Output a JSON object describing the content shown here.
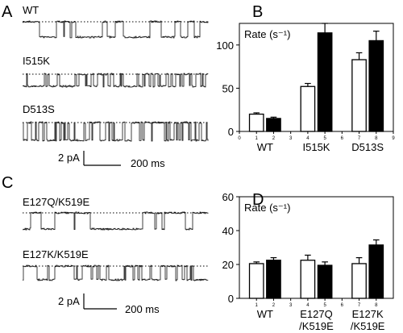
{
  "panels": {
    "A": {
      "letter": "A",
      "traces": [
        {
          "label": "WT"
        },
        {
          "label": "I515K"
        },
        {
          "label": "D513S"
        }
      ],
      "scalebar": {
        "y_label": "2 pA",
        "x_label": "200 ms"
      }
    },
    "C": {
      "letter": "C",
      "traces": [
        {
          "label": "E127Q/K519E"
        },
        {
          "label": "E127K/K519E"
        }
      ],
      "scalebar": {
        "y_label": "2 pA",
        "x_label": "200 ms"
      }
    }
  },
  "chart_data": [
    {
      "panel": "B",
      "type": "bar",
      "title": "Rate (s⁻¹)",
      "ylim": [
        0,
        125
      ],
      "yticks": [
        0,
        50,
        100
      ],
      "x_ticks": [
        "0",
        "1",
        "2",
        "3",
        "4",
        "5",
        "6",
        "7",
        "8",
        "9"
      ],
      "groups": [
        "WT",
        "I515K",
        "D513S"
      ],
      "series": [
        {
          "fill": "#ffffff",
          "x": [
            1,
            4,
            7
          ],
          "values": [
            20,
            52,
            83
          ],
          "errors": [
            1.5,
            3.5,
            8
          ]
        },
        {
          "fill": "#000000",
          "x": [
            2,
            5,
            8
          ],
          "values": [
            15,
            114,
            105
          ],
          "errors": [
            1.5,
            11,
            11
          ]
        }
      ],
      "grid": false
    },
    {
      "panel": "D",
      "type": "bar",
      "title": "Rate (s⁻¹)",
      "ylim": [
        0,
        60
      ],
      "yticks": [
        0,
        20,
        40,
        60
      ],
      "x_ticks": [
        "1",
        "2",
        "3",
        "4",
        "5",
        "6",
        "7",
        "8"
      ],
      "groups": [
        "WT",
        "E127Q\n/K519E",
        "E127K\n/K519E"
      ],
      "series": [
        {
          "fill": "#ffffff",
          "x": [
            1,
            4,
            7
          ],
          "values": [
            20.5,
            22.5,
            20.5
          ],
          "errors": [
            1,
            3,
            3.5
          ]
        },
        {
          "fill": "#000000",
          "x": [
            2,
            5,
            8
          ],
          "values": [
            22.5,
            19.5,
            31.5
          ],
          "errors": [
            1.5,
            2,
            3
          ]
        }
      ],
      "grid": false
    }
  ]
}
